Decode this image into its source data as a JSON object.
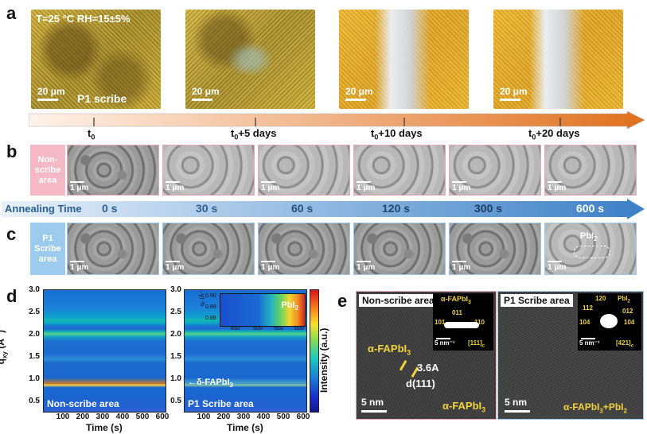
{
  "panel_a": {
    "label": "a",
    "condition": "T=25 °C RH=15±5%",
    "scale_label": "20 μm",
    "first_image_label": "P1 scribe",
    "times": [
      {
        "sub": "0",
        "suffix": ""
      },
      {
        "sub": "0",
        "suffix": "+5 days"
      },
      {
        "sub": "0",
        "suffix": "+10 days"
      },
      {
        "sub": "0",
        "suffix": "+20 days"
      }
    ]
  },
  "panel_b": {
    "label": "b",
    "side_label": "Non-scribe area",
    "scale_label": "1 μm"
  },
  "annealing": {
    "title": "Annealing Time",
    "times": [
      "0 s",
      "30 s",
      "60 s",
      "120 s",
      "300 s",
      "600 s"
    ]
  },
  "panel_c": {
    "label": "c",
    "side_label": "P1 Scribe area",
    "scale_label": "1 μm",
    "annotation_main": "PbI",
    "annotation_sub": "2"
  },
  "panel_d": {
    "label": "d",
    "ylabel_main": "q",
    "ylabel_sub": "xy",
    "ylabel_unit": " (Å",
    "ylabel_exp": "-1",
    "ylabel_close": ")",
    "xlabel": "Time (s)",
    "colorbar_label": "Intensity (a.u.)",
    "left_title": "Non-scribe area",
    "right_title": "P1 Scribe area",
    "delta_label_main": "←δ-FAPbI",
    "delta_label_sub": "3",
    "inset_peak_main": "PbI",
    "inset_peak_sub": "2",
    "inset_ylabel": "q₂ (Å⁻¹)",
    "inset_yticks": [
      "0.90",
      "0.89",
      "0.88"
    ],
    "inset_xticks": [
      "450",
      "500",
      "550",
      "600"
    ]
  },
  "chart_data": {
    "type": "heatmap",
    "title": "",
    "xlabel": "Time (s)",
    "ylabel": "q_xy (Å^-1)",
    "xlim": [
      0,
      600
    ],
    "ylim": [
      0.3,
      3.0
    ],
    "xticks": [
      "100",
      "200",
      "300",
      "400",
      "500",
      "600"
    ],
    "yticks": [
      "3.0",
      "2.5",
      "2.0",
      "1.5",
      "1.0",
      "0.5"
    ],
    "bands": [
      {
        "q": 2.05,
        "intensity": "medium"
      },
      {
        "q": 1.95,
        "intensity": "medium"
      },
      {
        "q": 1.45,
        "intensity": "low"
      },
      {
        "q": 1.0,
        "intensity": "high"
      },
      {
        "q": 0.85,
        "intensity": "low"
      }
    ]
  },
  "panel_e": {
    "label": "e",
    "left_title": "Non-scribe area",
    "right_title": "P1 Scribe area",
    "phase_main": "α-FAPbI",
    "phase_sub": "3",
    "dspacing": "3.6A",
    "plane": "d(111)",
    "left_bottom_main": "α-FAPbI",
    "left_bottom_sub": "3",
    "right_bottom_main": "α-FAPbI",
    "right_bottom_sub": "3",
    "right_bottom_tail": "+PbI",
    "right_bottom_tail_sub": "2",
    "scale_label": "5 nm",
    "fft_scale": "5 nm⁻¹",
    "left_fft": {
      "phase_main": "α-FAPbI",
      "phase_sub": "3",
      "spots": [
        "101",
        "011",
        "110"
      ],
      "zone": "[111]",
      "zone_sub": "c"
    },
    "right_fft": {
      "phase_a": "120",
      "phase_b": "PbI",
      "phase_b_sub": "2",
      "spots": [
        "112",
        "012",
        "104",
        "104"
      ],
      "zone": "[421]",
      "zone_sub": "c"
    }
  }
}
